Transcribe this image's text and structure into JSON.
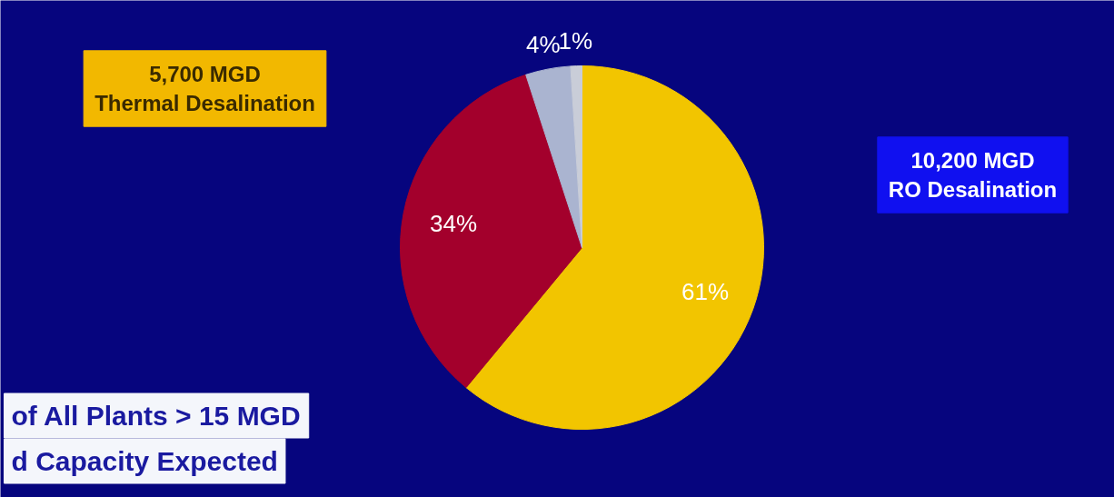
{
  "chart_data": {
    "type": "pie",
    "categories": [
      "10,200 MGD\nRO Desalination",
      "5,700 MGD\nThermal Desalination",
      null,
      null
    ],
    "values": [
      61,
      34,
      4,
      1
    ],
    "colors": [
      "#f2c500",
      "#a3002c",
      "#aab4d0",
      "#c9cdd8"
    ],
    "value_labels": [
      "61%",
      "34%",
      "4%",
      "1%"
    ],
    "annotations": [
      "of All Plants > 15 MGD",
      "d Capacity Expected"
    ]
  }
}
